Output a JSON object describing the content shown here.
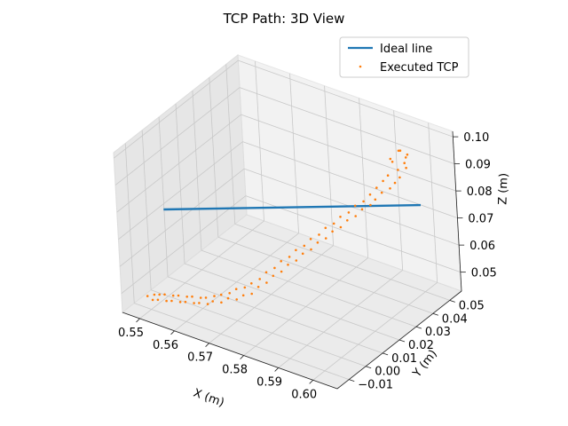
{
  "chart_data": {
    "type": "scatter",
    "projection": "3d",
    "title": "TCP Path: 3D View",
    "xlabel": "X (m)",
    "ylabel": "Y (m)",
    "zlabel": "Z (m)",
    "xlim": [
      0.545,
      0.607
    ],
    "ylim": [
      -0.017,
      0.057
    ],
    "zlim": [
      0.043,
      0.102
    ],
    "x_ticks": [
      0.55,
      0.56,
      0.57,
      0.58,
      0.59,
      0.6
    ],
    "x_tick_labels": [
      "0.55",
      "0.56",
      "0.57",
      "0.58",
      "0.59",
      "0.60"
    ],
    "y_ticks": [
      -0.01,
      0.0,
      0.01,
      0.02,
      0.03,
      0.04,
      0.05
    ],
    "y_tick_labels": [
      "−0.01",
      "0.00",
      "0.01",
      "0.02",
      "0.03",
      "0.04",
      "0.05"
    ],
    "z_ticks": [
      0.05,
      0.06,
      0.07,
      0.08,
      0.09,
      0.1
    ],
    "z_tick_labels": [
      "0.05",
      "0.06",
      "0.07",
      "0.08",
      "0.09",
      "0.10"
    ],
    "grid": true,
    "legend_position": "upper right",
    "series": [
      {
        "name": "Ideal line",
        "kind": "line",
        "color": "#1f77b4",
        "points": [
          [
            0.55,
            0.0,
            0.075
          ],
          [
            0.6,
            0.05,
            0.075
          ]
        ]
      },
      {
        "name": "Executed TCP",
        "kind": "scatter",
        "color": "#ff7f0e",
        "points": [
          [
            0.6,
            0.04,
            0.1
          ],
          [
            0.599,
            0.041,
            0.099
          ],
          [
            0.601,
            0.042,
            0.098
          ],
          [
            0.598,
            0.038,
            0.097
          ],
          [
            0.6,
            0.043,
            0.096
          ],
          [
            0.602,
            0.039,
            0.095
          ],
          [
            0.597,
            0.041,
            0.094
          ],
          [
            0.599,
            0.044,
            0.093
          ],
          [
            0.601,
            0.037,
            0.092
          ],
          [
            0.598,
            0.042,
            0.091
          ],
          [
            0.6,
            0.036,
            0.09
          ],
          [
            0.596,
            0.04,
            0.089
          ],
          [
            0.599,
            0.035,
            0.088
          ],
          [
            0.595,
            0.039,
            0.087
          ],
          [
            0.597,
            0.034,
            0.086
          ],
          [
            0.594,
            0.037,
            0.085
          ],
          [
            0.596,
            0.032,
            0.084
          ],
          [
            0.593,
            0.035,
            0.083
          ],
          [
            0.595,
            0.031,
            0.082
          ],
          [
            0.592,
            0.033,
            0.081
          ],
          [
            0.593,
            0.03,
            0.08
          ],
          [
            0.59,
            0.032,
            0.079
          ],
          [
            0.592,
            0.028,
            0.078
          ],
          [
            0.589,
            0.03,
            0.077
          ],
          [
            0.59,
            0.027,
            0.076
          ],
          [
            0.587,
            0.029,
            0.075
          ],
          [
            0.589,
            0.025,
            0.074
          ],
          [
            0.586,
            0.027,
            0.073
          ],
          [
            0.587,
            0.024,
            0.072
          ],
          [
            0.584,
            0.026,
            0.071
          ],
          [
            0.586,
            0.022,
            0.07
          ],
          [
            0.583,
            0.024,
            0.069
          ],
          [
            0.584,
            0.021,
            0.068
          ],
          [
            0.581,
            0.023,
            0.067
          ],
          [
            0.583,
            0.019,
            0.066
          ],
          [
            0.58,
            0.021,
            0.065
          ],
          [
            0.581,
            0.018,
            0.064
          ],
          [
            0.578,
            0.02,
            0.063
          ],
          [
            0.58,
            0.016,
            0.062
          ],
          [
            0.577,
            0.018,
            0.061
          ],
          [
            0.578,
            0.015,
            0.06
          ],
          [
            0.575,
            0.017,
            0.059
          ],
          [
            0.577,
            0.013,
            0.058
          ],
          [
            0.574,
            0.015,
            0.057
          ],
          [
            0.575,
            0.012,
            0.056
          ],
          [
            0.572,
            0.014,
            0.055
          ],
          [
            0.574,
            0.01,
            0.054
          ],
          [
            0.571,
            0.012,
            0.053
          ],
          [
            0.572,
            0.009,
            0.052
          ],
          [
            0.569,
            0.011,
            0.051
          ],
          [
            0.571,
            0.007,
            0.05
          ],
          [
            0.568,
            0.009,
            0.05
          ],
          [
            0.569,
            0.006,
            0.049
          ],
          [
            0.566,
            0.008,
            0.049
          ],
          [
            0.568,
            0.004,
            0.048
          ],
          [
            0.565,
            0.006,
            0.048
          ],
          [
            0.566,
            0.003,
            0.048
          ],
          [
            0.563,
            0.005,
            0.047
          ],
          [
            0.565,
            0.001,
            0.047
          ],
          [
            0.562,
            0.003,
            0.047
          ],
          [
            0.563,
            0.0,
            0.047
          ],
          [
            0.56,
            0.002,
            0.046
          ],
          [
            0.562,
            -0.001,
            0.046
          ],
          [
            0.559,
            0.001,
            0.046
          ],
          [
            0.56,
            -0.002,
            0.046
          ],
          [
            0.557,
            0.0,
            0.046
          ],
          [
            0.559,
            -0.003,
            0.046
          ],
          [
            0.556,
            -0.001,
            0.046
          ],
          [
            0.557,
            -0.004,
            0.046
          ],
          [
            0.554,
            -0.002,
            0.046
          ],
          [
            0.556,
            -0.005,
            0.046
          ],
          [
            0.553,
            -0.003,
            0.046
          ],
          [
            0.554,
            -0.006,
            0.046
          ],
          [
            0.551,
            -0.004,
            0.046
          ],
          [
            0.553,
            -0.007,
            0.046
          ],
          [
            0.55,
            -0.005,
            0.046
          ],
          [
            0.551,
            -0.008,
            0.046
          ],
          [
            0.549,
            -0.006,
            0.046
          ],
          [
            0.55,
            -0.009,
            0.046
          ],
          [
            0.548,
            -0.008,
            0.046
          ]
        ]
      }
    ]
  }
}
